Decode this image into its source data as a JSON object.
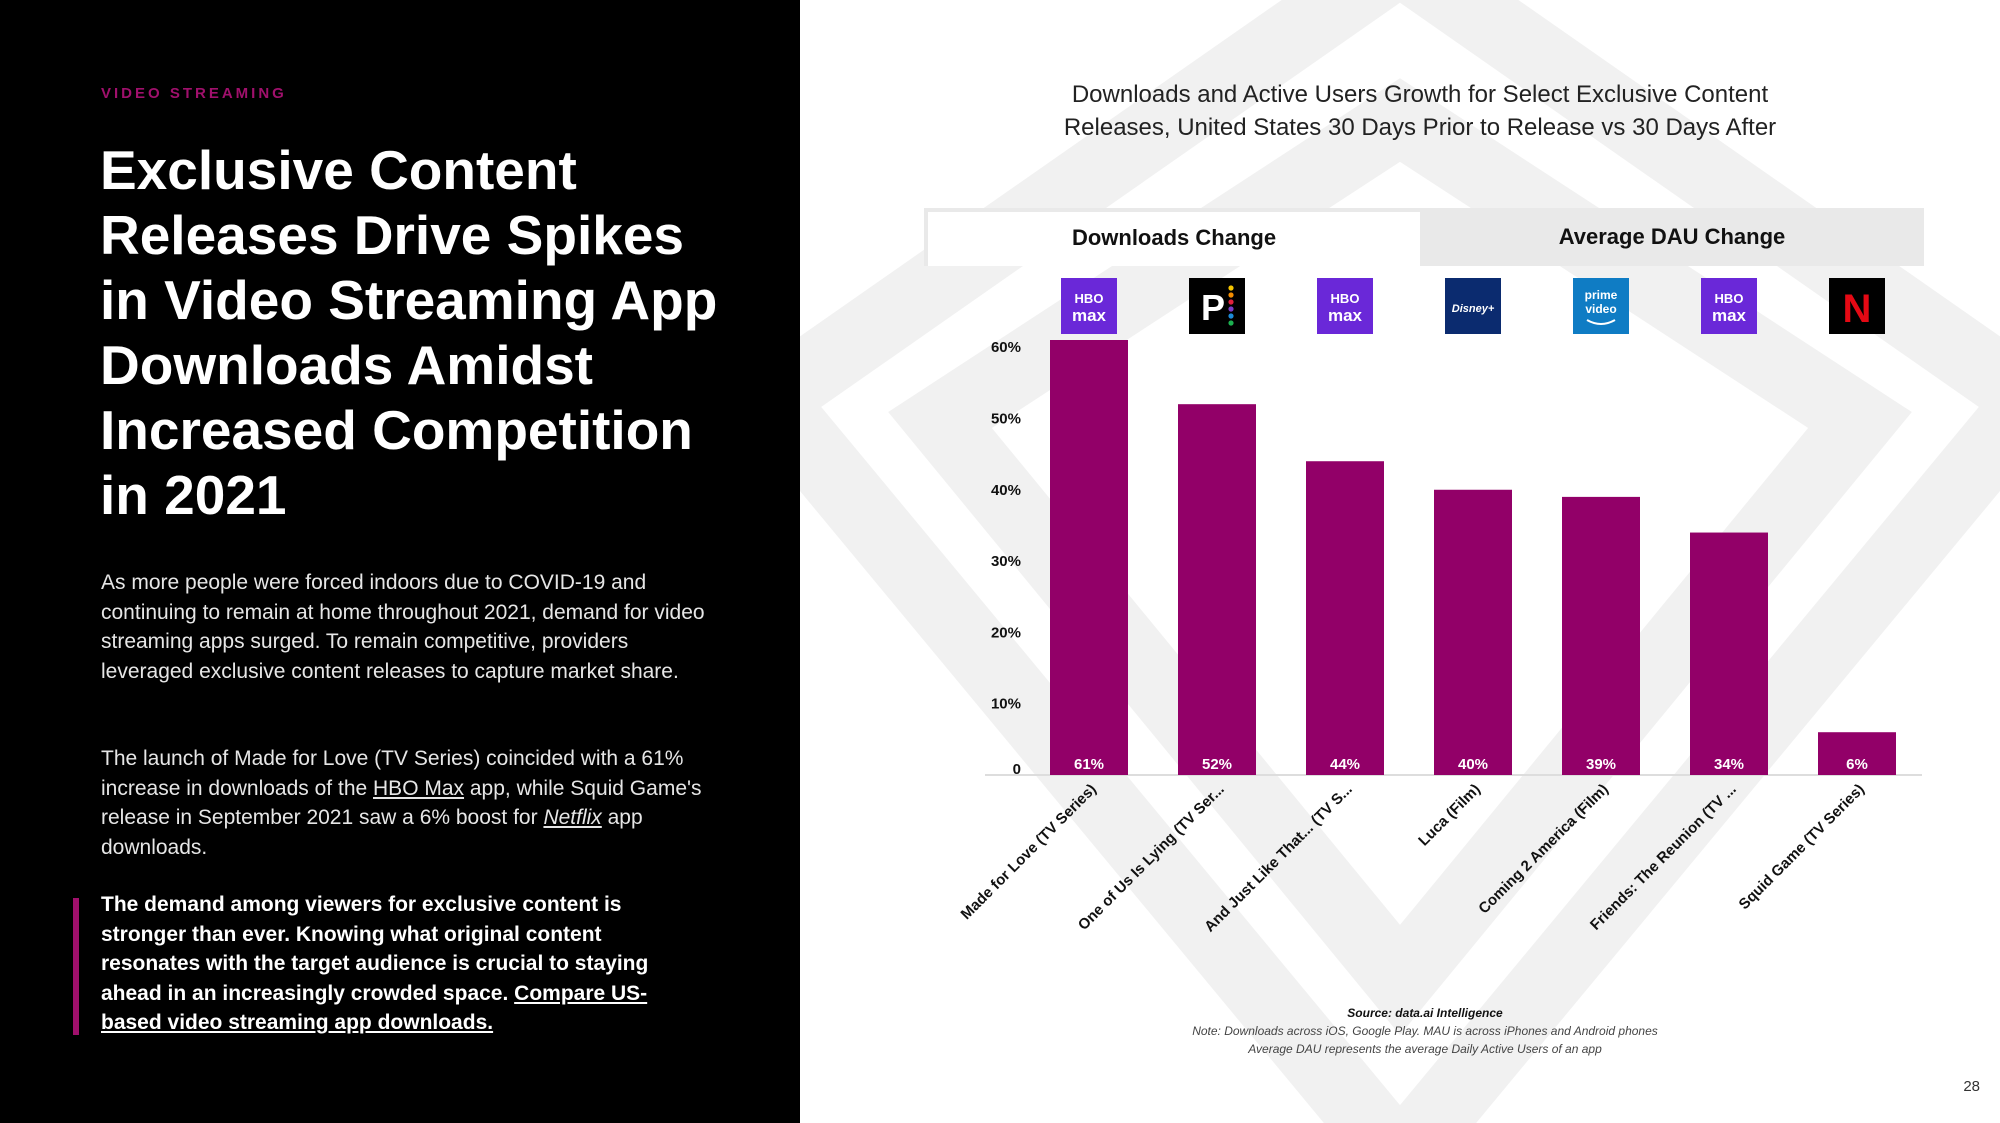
{
  "left": {
    "eyebrow": "VIDEO STREAMING",
    "headline": "Exclusive Content Releases Drive Spikes in Video Streaming App Downloads Amidst Increased Competition in 2021",
    "para1": "As more people were forced indoors due to COVID-19 and continuing to remain at home throughout 2021, demand for video streaming apps surged. To remain competitive, providers leveraged exclusive content releases to capture market share.",
    "para2_a": "The launch of Made for Love (TV Series) coincided with a 61% increase in downloads of the ",
    "para2_link1": "HBO Max",
    "para2_b": " app, while Squid Game's release in September 2021 saw a 6% boost for ",
    "para2_link2": "Netflix",
    "para2_c": " app downloads.",
    "callout_text": "The demand among viewers for exclusive content is stronger than ever. Knowing what original content resonates with the target audience is crucial to staying ahead in an increasingly crowded space. ",
    "callout_link": "Compare US-based video streaming app downloads."
  },
  "tabs": {
    "active": "Downloads Change",
    "inactive": "Average DAU Change"
  },
  "colors": {
    "bar": "#920068",
    "accent": "#a0106c",
    "hbo_max": "#6a28d8",
    "peacock": "#000000",
    "disney": "#0b2b6f",
    "prime": "#0f7cc4",
    "netflix": "#000000"
  },
  "chart_data": {
    "type": "bar",
    "title": "Downloads and Active Users Growth for Select Exclusive Content Releases, United States 30 Days Prior to Release vs 30 Days After",
    "xlabel": "",
    "ylabel": "",
    "ylim": [
      0,
      61
    ],
    "yticks": [
      0,
      10,
      20,
      30,
      40,
      50,
      60
    ],
    "ytick_labels": [
      "0",
      "10%",
      "20%",
      "30%",
      "40%",
      "50%",
      "60%"
    ],
    "categories": [
      "Made for Love (TV Series)",
      "One of Us Is Lying (TV Ser...",
      "And Just Like That... (TV S...",
      "Luca (Film)",
      "Coming 2 America (Film)",
      "Friends: The Reunion (TV ...",
      "Squid Game (TV Series)"
    ],
    "values": [
      61,
      52,
      44,
      40,
      39,
      34,
      6
    ],
    "data_labels": [
      "61%",
      "52%",
      "44%",
      "40%",
      "39%",
      "34%",
      "6%"
    ],
    "apps": [
      {
        "icon": "hbo-max-icon",
        "line1": "HBO",
        "line2": "max"
      },
      {
        "icon": "peacock-icon",
        "line1": "P",
        "line2": ""
      },
      {
        "icon": "hbo-max-icon",
        "line1": "HBO",
        "line2": "max"
      },
      {
        "icon": "disney-plus-icon",
        "line1": "Disney+",
        "line2": ""
      },
      {
        "icon": "prime-video-icon",
        "line1": "prime",
        "line2": "video"
      },
      {
        "icon": "hbo-max-icon",
        "line1": "HBO",
        "line2": "max"
      },
      {
        "icon": "netflix-icon",
        "line1": "N",
        "line2": ""
      }
    ],
    "grid": false,
    "legend": "none"
  },
  "footer": {
    "source": "Source: data.ai Intelligence",
    "note1": "Note: Downloads across iOS, Google Play. MAU is across iPhones and Android phones",
    "note2": "Average DAU represents the average Daily Active Users of an app",
    "page_number": "28"
  }
}
